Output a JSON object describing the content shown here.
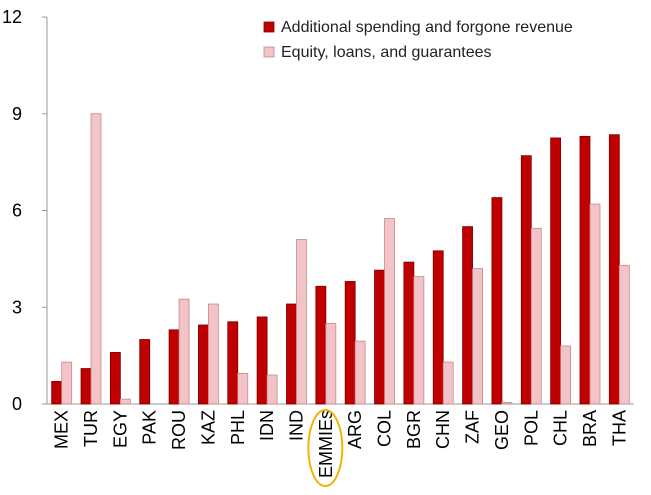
{
  "chart_data": {
    "type": "bar",
    "title": "",
    "xlabel": "",
    "ylabel": "",
    "ylim": [
      0,
      12
    ],
    "yticks": [
      "0",
      "3",
      "6",
      "9",
      "12"
    ],
    "yticks_values": [
      0,
      3,
      6,
      9,
      12
    ],
    "grid": false,
    "legend_position": "top-right",
    "categories": [
      "MEX",
      "TUR",
      "EGY",
      "PAK",
      "ROU",
      "KAZ",
      "PHL",
      "IDN",
      "IND",
      "EMMIEs",
      "ARG",
      "COL",
      "BGR",
      "CHN",
      "ZAF",
      "GEO",
      "POL",
      "CHL",
      "BRA",
      "THA"
    ],
    "highlighted_category": "EMMIEs",
    "series": [
      {
        "name": "Additional spending and forgone revenue",
        "color": "#c00000",
        "values": [
          0.7,
          1.1,
          1.6,
          2.0,
          2.3,
          2.45,
          2.55,
          2.7,
          3.1,
          3.65,
          3.8,
          4.15,
          4.4,
          4.75,
          5.5,
          6.4,
          7.7,
          8.25,
          8.3,
          8.35
        ]
      },
      {
        "name": "Equity, loans, and guarantees",
        "color": "#f2c4c7",
        "values": [
          1.3,
          9.0,
          0.15,
          0,
          3.25,
          3.1,
          0.95,
          0.9,
          5.1,
          2.5,
          1.95,
          5.75,
          3.95,
          1.3,
          4.2,
          0.05,
          5.45,
          1.8,
          6.2,
          4.3
        ]
      }
    ]
  }
}
